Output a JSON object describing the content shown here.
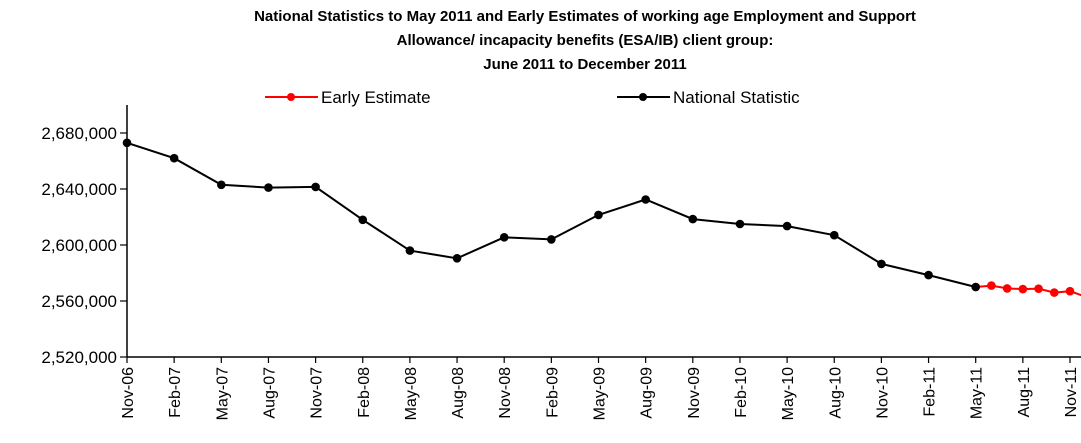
{
  "chart_data": {
    "type": "line",
    "title": [
      "National Statistics to May 2011 and Early Estimates of working age Employment and Support",
      "Allowance/ incapacity benefits (ESA/IB) client group:",
      "June 2011 to December 2011"
    ],
    "xlabel": "",
    "ylabel": "",
    "ylim": [
      2520000,
      2700000
    ],
    "yticks": [
      "2,520,000",
      "2,560,000",
      "2,600,000",
      "2,640,000",
      "2,680,000"
    ],
    "ytick_values": [
      2520000,
      2560000,
      2600000,
      2640000,
      2680000
    ],
    "xtick_labels": [
      "Nov-06",
      "Feb-07",
      "May-07",
      "Aug-07",
      "Nov-07",
      "Feb-08",
      "May-08",
      "Aug-08",
      "Nov-08",
      "Feb-09",
      "May-09",
      "Aug-09",
      "Nov-09",
      "Feb-10",
      "May-10",
      "Aug-10",
      "Nov-10",
      "Feb-11",
      "May-11",
      "Aug-11",
      "Nov-11"
    ],
    "legend_position": "top",
    "grid": false,
    "series": [
      {
        "name": "Early Estimate",
        "color": "#ff0000",
        "points": [
          [
            "May-11",
            2570000
          ],
          [
            "Jun-11",
            2571000
          ],
          [
            "Jul-11",
            2569000
          ],
          [
            "Aug-11",
            2568500
          ],
          [
            "Sep-11",
            2568800
          ],
          [
            "Oct-11",
            2566000
          ],
          [
            "Nov-11",
            2567000
          ],
          [
            "Dec-11",
            2563000
          ]
        ]
      },
      {
        "name": "National Statistic",
        "color": "#000000",
        "points": [
          [
            "Nov-06",
            2673000
          ],
          [
            "Feb-07",
            2662000
          ],
          [
            "May-07",
            2643000
          ],
          [
            "Aug-07",
            2641000
          ],
          [
            "Nov-07",
            2641500
          ],
          [
            "Feb-08",
            2618000
          ],
          [
            "May-08",
            2596000
          ],
          [
            "Aug-08",
            2590500
          ],
          [
            "Nov-08",
            2605500
          ],
          [
            "Feb-09",
            2604000
          ],
          [
            "May-09",
            2621500
          ],
          [
            "Aug-09",
            2632500
          ],
          [
            "Nov-09",
            2618500
          ],
          [
            "Feb-10",
            2615000
          ],
          [
            "May-10",
            2613500
          ],
          [
            "Aug-10",
            2607000
          ],
          [
            "Nov-10",
            2586500
          ],
          [
            "Feb-11",
            2578500
          ],
          [
            "May-11",
            2570000
          ]
        ]
      }
    ]
  }
}
